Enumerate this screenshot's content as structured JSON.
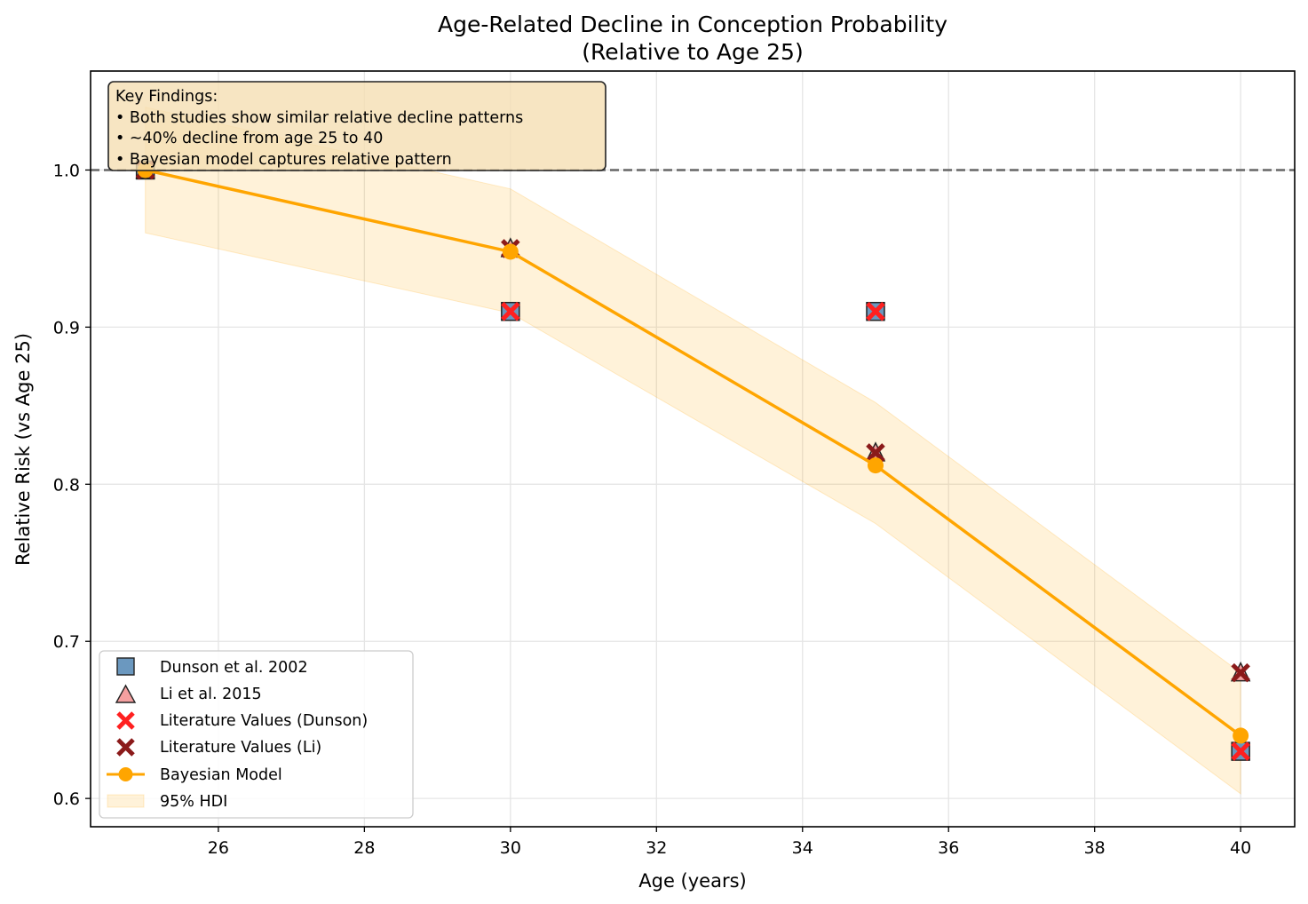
{
  "chart_data": {
    "type": "scatter",
    "title": "Age-Related Decline in Conception Probability",
    "subtitle": "(Relative to Age 25)",
    "xlabel": "Age (years)",
    "ylabel": "Relative Risk (vs Age 25)",
    "xlim": [
      24.25,
      40.74
    ],
    "ylim": [
      0.582,
      1.063
    ],
    "xticks": [
      26,
      28,
      30,
      32,
      34,
      36,
      38,
      40
    ],
    "yticks": [
      0.6,
      0.7,
      0.8,
      0.9,
      1.0
    ],
    "ytick_labels": [
      "0.6",
      "0.7",
      "0.8",
      "0.9",
      "1.0"
    ],
    "grid": true,
    "reference_line": {
      "y": 1.0,
      "style": "dashed",
      "color": "#666666"
    },
    "series": [
      {
        "name": "Dunson et al. 2002",
        "type": "scatter",
        "marker": "square",
        "color": "#5b8db8",
        "x": [
          25,
          30,
          35,
          40
        ],
        "y": [
          1.0,
          0.91,
          0.91,
          0.63
        ]
      },
      {
        "name": "Li et al. 2015",
        "type": "scatter",
        "marker": "triangle",
        "color": "#f4a0a0",
        "x": [
          25,
          30,
          35,
          40
        ],
        "y": [
          1.0,
          0.95,
          0.82,
          0.68
        ]
      },
      {
        "name": "Literature Values (Dunson)",
        "type": "scatter",
        "marker": "x",
        "color": "#ff2020",
        "x": [
          25,
          30,
          35,
          40
        ],
        "y": [
          1.0,
          0.91,
          0.91,
          0.63
        ]
      },
      {
        "name": "Literature Values (Li)",
        "type": "scatter",
        "marker": "x",
        "color": "#8b1a1a",
        "x": [
          25,
          30,
          35,
          40
        ],
        "y": [
          1.0,
          0.95,
          0.82,
          0.68
        ]
      },
      {
        "name": "Bayesian Model",
        "type": "line",
        "marker": "circle",
        "color": "#ffa500",
        "x": [
          25,
          30,
          35,
          40
        ],
        "y": [
          1.0,
          0.948,
          0.812,
          0.64
        ]
      },
      {
        "name": "95% HDI",
        "type": "area",
        "color": "#ffa500",
        "x": [
          25,
          30,
          35,
          40
        ],
        "lower": [
          0.96,
          0.909,
          0.775,
          0.603
        ],
        "upper": [
          1.04,
          0.988,
          0.852,
          0.68
        ]
      }
    ],
    "legend": {
      "placement": "lower-left",
      "entries": [
        "Dunson et al. 2002",
        "Li et al. 2015",
        "Literature Values (Dunson)",
        "Literature Values (Li)",
        "Bayesian Model",
        "95% HDI"
      ]
    },
    "annotation": {
      "placement": "top-left",
      "lines": [
        "Key Findings:",
        "• Both studies show similar relative decline patterns",
        "• ~40% decline from age 25 to 40",
        "• Bayesian model captures relative pattern"
      ]
    }
  }
}
